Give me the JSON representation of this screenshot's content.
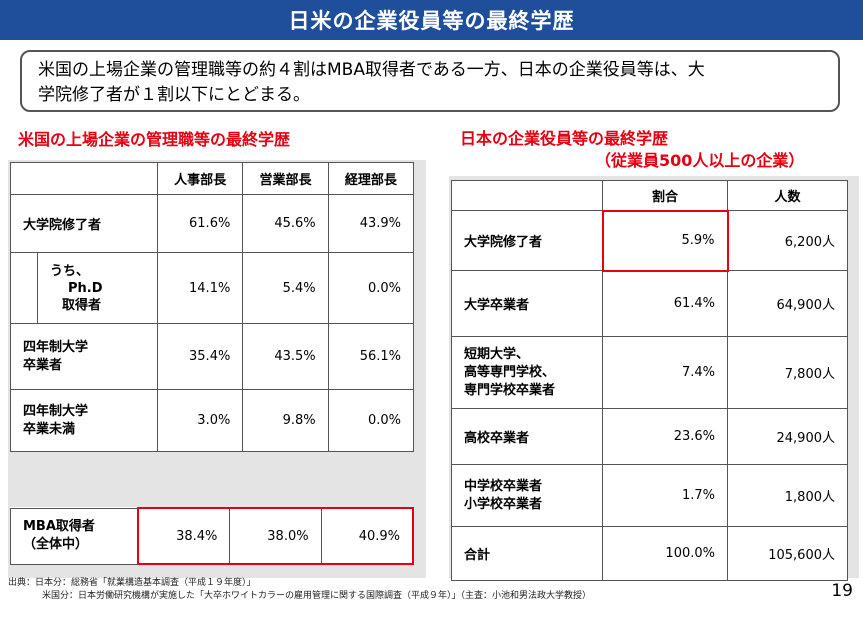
{
  "title": "日米の企業役員等の最終学歴",
  "summary_line1": "米国の上場企業の管理職等の約４割はMBA取得者である一方、日本の企業役員等は、大",
  "summary_line2": "学院修了者が１割以下にとどまる。",
  "us": {
    "title": "米国の上場企業の管理職等の最終学歴",
    "headers": [
      "人事部長",
      "営業部長",
      "経理部長"
    ],
    "rows": [
      {
        "label": "大学院修了者",
        "values": [
          "61.6%",
          "45.6%",
          "43.9%"
        ]
      },
      {
        "label_lines": [
          "うち、",
          "Ph.D",
          "取得者"
        ],
        "values": [
          "14.1%",
          "5.4%",
          "0.0%"
        ]
      },
      {
        "label_lines": [
          "四年制大学",
          "卒業者"
        ],
        "values": [
          "35.4%",
          "43.5%",
          "56.1%"
        ]
      },
      {
        "label_lines": [
          "四年制大学",
          "卒業未満"
        ],
        "values": [
          "3.0%",
          "9.8%",
          "0.0%"
        ]
      }
    ],
    "mba": {
      "label_lines": [
        "MBA取得者",
        "（全体中）"
      ],
      "values": [
        "38.4%",
        "38.0%",
        "40.9%"
      ]
    }
  },
  "jp": {
    "title_line1": "日本の企業役員等の最終学歴",
    "title_line2": "（従業員500人以上の企業）",
    "headers": [
      "割合",
      "人数"
    ],
    "rows": [
      {
        "label_lines": [
          "大学院修了者"
        ],
        "values": [
          "5.9%",
          "6,200人"
        ]
      },
      {
        "label_lines": [
          "大学卒業者"
        ],
        "values": [
          "61.4%",
          "64,900人"
        ]
      },
      {
        "label_lines": [
          "短期大学、",
          "高等専門学校、",
          "専門学校卒業者"
        ],
        "values": [
          "7.4%",
          "7,800人"
        ]
      },
      {
        "label_lines": [
          "高校卒業者"
        ],
        "values": [
          "23.6%",
          "24,900人"
        ]
      },
      {
        "label_lines": [
          "中学校卒業者",
          "小学校卒業者"
        ],
        "values": [
          "1.7%",
          "1,800人"
        ]
      },
      {
        "label_lines": [
          "合計"
        ],
        "values": [
          "100.0%",
          "105,600人"
        ]
      }
    ]
  },
  "source_line1": "出典：日本分：総務省「就業構造基本調査（平成１９年度）」",
  "source_line2": "米国分：日本労働研究機構が実施した「大卒ホワイトカラーの雇用管理に関する国際調査（平成９年）」（主査：小池和男法政大学教授）",
  "page_number": "19",
  "colors": {
    "header_bg": "#1f4e9b",
    "accent_red": "#e60012"
  }
}
